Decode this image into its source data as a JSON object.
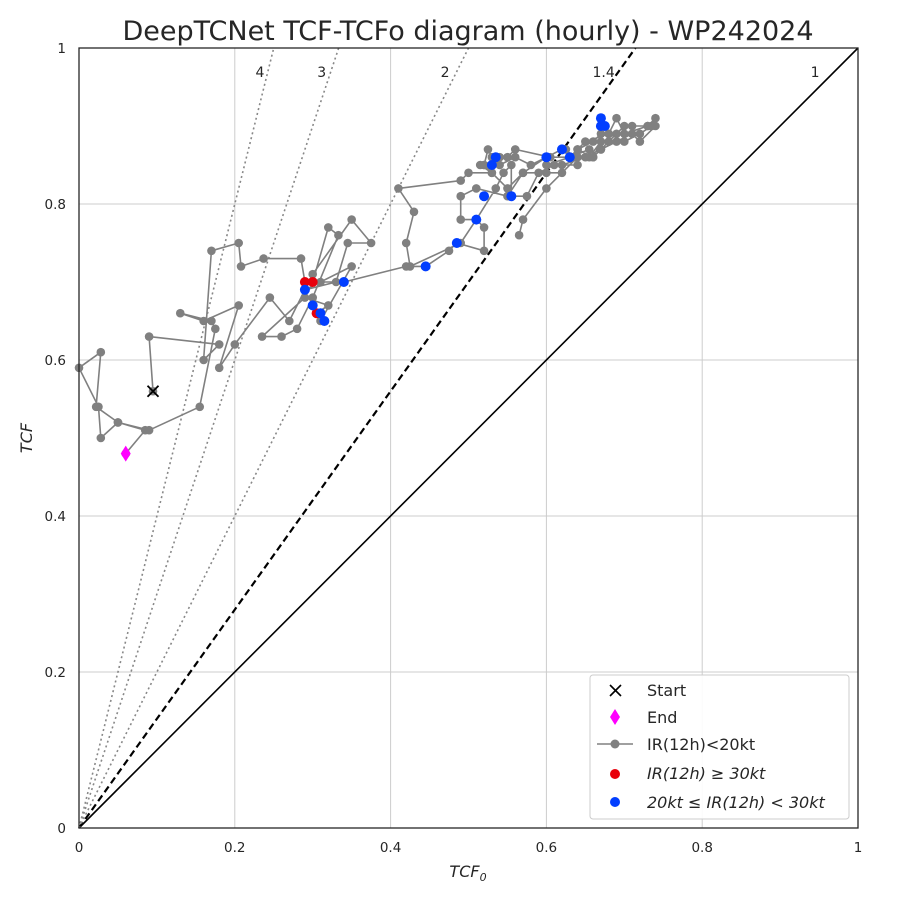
{
  "chart_data": {
    "type": "scatter",
    "title": "DeepTCNet TCF-TCFo diagram (hourly) - WP242024",
    "xlabel": "TCF",
    "xlabel_sub": "0",
    "ylabel": "TCF",
    "xlim": [
      0,
      1
    ],
    "ylim": [
      0,
      1
    ],
    "xticks": [
      "0",
      "0.2",
      "0.4",
      "0.6",
      "0.8",
      "1"
    ],
    "yticks": [
      "0",
      "0.2",
      "0.4",
      "0.6",
      "0.8",
      "1"
    ],
    "grid": true,
    "legend_position": "lower-right",
    "colors": {
      "track": "#808080",
      "strong": "#e8000b",
      "moderate": "#023eff",
      "end": "#ff00ff",
      "start": "#000000",
      "grid": "#cccccc"
    },
    "reference_lines": [
      {
        "label": "1",
        "slope": 1,
        "style": "solid"
      },
      {
        "label": "1.4",
        "slope": 1.4,
        "style": "dashed"
      },
      {
        "label": "2",
        "slope": 2,
        "style": "dotted"
      },
      {
        "label": "3",
        "slope": 3,
        "style": "dotted"
      },
      {
        "label": "4",
        "slope": 4,
        "style": "dotted"
      }
    ],
    "legend": [
      {
        "key": "start",
        "label": "Start"
      },
      {
        "key": "end",
        "label": "End"
      },
      {
        "key": "track",
        "label": "IR(12h)<20kt"
      },
      {
        "key": "strong",
        "label": "IR(12h) ≥ 30kt"
      },
      {
        "key": "moderate",
        "label": "20kt ≤ IR(12h) < 30kt"
      }
    ],
    "start": {
      "x": 0.095,
      "y": 0.56
    },
    "end": {
      "x": 0.06,
      "y": 0.48
    },
    "track": [
      [
        0.095,
        0.56
      ],
      [
        0.09,
        0.63
      ],
      [
        0.18,
        0.62
      ],
      [
        0.16,
        0.6
      ],
      [
        0.17,
        0.74
      ],
      [
        0.205,
        0.75
      ],
      [
        0.208,
        0.72
      ],
      [
        0.237,
        0.73
      ],
      [
        0.285,
        0.73
      ],
      [
        0.29,
        0.7
      ],
      [
        0.3,
        0.7
      ],
      [
        0.32,
        0.77
      ],
      [
        0.333,
        0.76
      ],
      [
        0.3,
        0.68
      ],
      [
        0.28,
        0.64
      ],
      [
        0.26,
        0.63
      ],
      [
        0.235,
        0.63
      ],
      [
        0.29,
        0.68
      ],
      [
        0.32,
        0.67
      ],
      [
        0.305,
        0.66
      ],
      [
        0.31,
        0.65
      ],
      [
        0.35,
        0.72
      ],
      [
        0.29,
        0.69
      ],
      [
        0.33,
        0.7
      ],
      [
        0.345,
        0.75
      ],
      [
        0.375,
        0.75
      ],
      [
        0.35,
        0.78
      ],
      [
        0.3,
        0.71
      ],
      [
        0.27,
        0.65
      ],
      [
        0.245,
        0.68
      ],
      [
        0.2,
        0.62
      ],
      [
        0.18,
        0.59
      ],
      [
        0.205,
        0.67
      ],
      [
        0.16,
        0.65
      ],
      [
        0.13,
        0.66
      ],
      [
        0.17,
        0.65
      ],
      [
        0.175,
        0.64
      ],
      [
        0.155,
        0.54
      ],
      [
        0.09,
        0.51
      ],
      [
        0.05,
        0.52
      ],
      [
        0.022,
        0.54
      ],
      [
        0.028,
        0.61
      ],
      [
        0.0,
        0.59
      ],
      [
        0.025,
        0.54
      ],
      [
        0.028,
        0.5
      ],
      [
        0.05,
        0.52
      ],
      [
        0.085,
        0.51
      ],
      [
        0.06,
        0.48
      ]
    ],
    "track_b": [
      [
        0.31,
        0.7
      ],
      [
        0.34,
        0.7
      ],
      [
        0.42,
        0.72
      ],
      [
        0.445,
        0.72
      ],
      [
        0.475,
        0.74
      ],
      [
        0.485,
        0.75
      ],
      [
        0.52,
        0.74
      ],
      [
        0.52,
        0.77
      ],
      [
        0.51,
        0.78
      ],
      [
        0.49,
        0.78
      ],
      [
        0.49,
        0.81
      ],
      [
        0.51,
        0.82
      ],
      [
        0.55,
        0.81
      ],
      [
        0.57,
        0.84
      ],
      [
        0.6,
        0.86
      ],
      [
        0.62,
        0.87
      ],
      [
        0.625,
        0.87
      ],
      [
        0.635,
        0.86
      ],
      [
        0.64,
        0.87
      ],
      [
        0.66,
        0.88
      ],
      [
        0.67,
        0.89
      ],
      [
        0.67,
        0.9
      ],
      [
        0.675,
        0.9
      ],
      [
        0.68,
        0.89
      ],
      [
        0.7,
        0.88
      ],
      [
        0.72,
        0.89
      ],
      [
        0.735,
        0.9
      ],
      [
        0.74,
        0.91
      ],
      [
        0.73,
        0.9
      ],
      [
        0.7,
        0.89
      ],
      [
        0.69,
        0.91
      ],
      [
        0.68,
        0.89
      ],
      [
        0.65,
        0.88
      ],
      [
        0.63,
        0.86
      ],
      [
        0.6,
        0.86
      ],
      [
        0.58,
        0.85
      ],
      [
        0.56,
        0.86
      ],
      [
        0.54,
        0.85
      ],
      [
        0.53,
        0.86
      ],
      [
        0.525,
        0.87
      ],
      [
        0.52,
        0.85
      ],
      [
        0.53,
        0.84
      ],
      [
        0.5,
        0.84
      ],
      [
        0.49,
        0.83
      ],
      [
        0.41,
        0.82
      ],
      [
        0.43,
        0.79
      ],
      [
        0.42,
        0.75
      ],
      [
        0.425,
        0.72
      ],
      [
        0.49,
        0.75
      ],
      [
        0.51,
        0.78
      ],
      [
        0.535,
        0.82
      ],
      [
        0.545,
        0.84
      ],
      [
        0.555,
        0.85
      ],
      [
        0.555,
        0.81
      ],
      [
        0.575,
        0.81
      ],
      [
        0.59,
        0.84
      ],
      [
        0.61,
        0.85
      ],
      [
        0.64,
        0.85
      ],
      [
        0.64,
        0.87
      ],
      [
        0.66,
        0.86
      ],
      [
        0.67,
        0.88
      ],
      [
        0.655,
        0.86
      ],
      [
        0.655,
        0.87
      ],
      [
        0.63,
        0.86
      ],
      [
        0.6,
        0.85
      ],
      [
        0.605,
        0.86
      ],
      [
        0.56,
        0.87
      ],
      [
        0.55,
        0.86
      ],
      [
        0.54,
        0.86
      ],
      [
        0.52,
        0.85
      ],
      [
        0.515,
        0.85
      ],
      [
        0.53,
        0.84
      ],
      [
        0.55,
        0.82
      ],
      [
        0.57,
        0.84
      ],
      [
        0.6,
        0.84
      ],
      [
        0.62,
        0.84
      ],
      [
        0.62,
        0.85
      ],
      [
        0.65,
        0.86
      ],
      [
        0.67,
        0.87
      ],
      [
        0.69,
        0.88
      ],
      [
        0.71,
        0.89
      ],
      [
        0.72,
        0.88
      ],
      [
        0.74,
        0.9
      ],
      [
        0.73,
        0.9
      ],
      [
        0.71,
        0.9
      ],
      [
        0.7,
        0.9
      ],
      [
        0.69,
        0.89
      ],
      [
        0.68,
        0.88
      ],
      [
        0.67,
        0.87
      ],
      [
        0.66,
        0.86
      ],
      [
        0.64,
        0.86
      ],
      [
        0.6,
        0.82
      ],
      [
        0.57,
        0.78
      ],
      [
        0.565,
        0.76
      ]
    ],
    "strong_points": [
      [
        0.29,
        0.7
      ],
      [
        0.3,
        0.7
      ],
      [
        0.305,
        0.66
      ]
    ],
    "moderate_points": [
      [
        0.29,
        0.69
      ],
      [
        0.3,
        0.67
      ],
      [
        0.31,
        0.66
      ],
      [
        0.315,
        0.65
      ],
      [
        0.34,
        0.7
      ],
      [
        0.445,
        0.72
      ],
      [
        0.485,
        0.75
      ],
      [
        0.51,
        0.78
      ],
      [
        0.52,
        0.81
      ],
      [
        0.53,
        0.85
      ],
      [
        0.535,
        0.86
      ],
      [
        0.555,
        0.81
      ],
      [
        0.6,
        0.86
      ],
      [
        0.62,
        0.87
      ],
      [
        0.63,
        0.86
      ],
      [
        0.67,
        0.9
      ],
      [
        0.67,
        0.91
      ],
      [
        0.675,
        0.9
      ]
    ]
  }
}
